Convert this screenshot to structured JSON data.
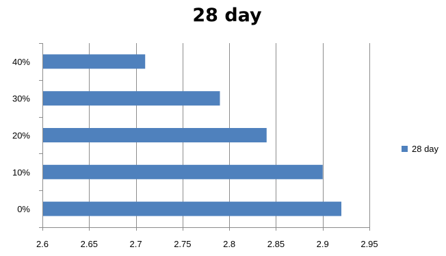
{
  "chart_data": {
    "type": "bar",
    "orientation": "horizontal",
    "title": "28 day",
    "xlabel": "",
    "ylabel": "",
    "categories": [
      "0%",
      "10%",
      "20%",
      "30%",
      "40%"
    ],
    "series": [
      {
        "name": "28 day",
        "color": "#4F81BD",
        "values": [
          2.92,
          2.9,
          2.84,
          2.79,
          2.71
        ]
      }
    ],
    "xlim": [
      2.6,
      2.95
    ],
    "xticks": [
      "2.6",
      "2.65",
      "2.7",
      "2.75",
      "2.8",
      "2.85",
      "2.9",
      "2.95"
    ],
    "grid": {
      "vertical": true,
      "horizontal": false
    },
    "legend": "right"
  }
}
